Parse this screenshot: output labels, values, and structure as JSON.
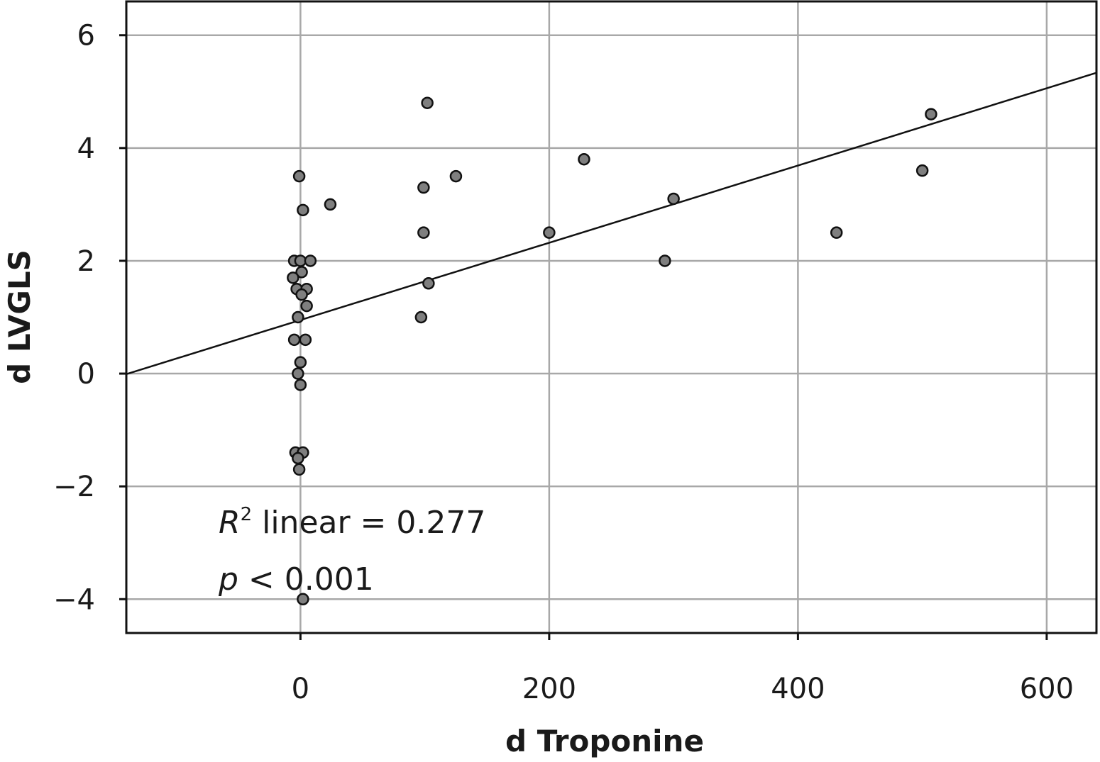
{
  "chart_data": {
    "type": "scatter",
    "title": "",
    "xlabel": "d Troponine",
    "ylabel": "d LVGLS",
    "xlim": [
      -140,
      640
    ],
    "ylim": [
      -4.6,
      6.6
    ],
    "xticks": [
      0,
      200,
      400,
      600
    ],
    "yticks": [
      -4,
      -2,
      0,
      2,
      4,
      6
    ],
    "xtick_labels": [
      "0",
      "200",
      "400",
      "600"
    ],
    "ytick_labels": [
      "−4",
      "−2",
      "0",
      "2",
      "4",
      "6"
    ],
    "grid": true,
    "points": [
      {
        "x": -1,
        "y": 3.5
      },
      {
        "x": 2,
        "y": 2.9
      },
      {
        "x": 24,
        "y": 3.0
      },
      {
        "x": -5,
        "y": 2.0
      },
      {
        "x": 0,
        "y": 2.0
      },
      {
        "x": 8,
        "y": 2.0
      },
      {
        "x": 1,
        "y": 1.8
      },
      {
        "x": -6,
        "y": 1.7
      },
      {
        "x": -3,
        "y": 1.5
      },
      {
        "x": 5,
        "y": 1.5
      },
      {
        "x": 1,
        "y": 1.4
      },
      {
        "x": 5,
        "y": 1.2
      },
      {
        "x": -2,
        "y": 1.0
      },
      {
        "x": -5,
        "y": 0.6
      },
      {
        "x": 4,
        "y": 0.6
      },
      {
        "x": 0,
        "y": 0.2
      },
      {
        "x": -2,
        "y": 0.0
      },
      {
        "x": 0,
        "y": -0.2
      },
      {
        "x": -4,
        "y": -1.4
      },
      {
        "x": 2,
        "y": -1.4
      },
      {
        "x": -2,
        "y": -1.5
      },
      {
        "x": -1,
        "y": -1.7
      },
      {
        "x": 2,
        "y": -4.0
      },
      {
        "x": 102,
        "y": 4.8
      },
      {
        "x": 99,
        "y": 3.3
      },
      {
        "x": 125,
        "y": 3.5
      },
      {
        "x": 99,
        "y": 2.5
      },
      {
        "x": 103,
        "y": 1.6
      },
      {
        "x": 97,
        "y": 1.0
      },
      {
        "x": 200,
        "y": 2.5
      },
      {
        "x": 228,
        "y": 3.8
      },
      {
        "x": 300,
        "y": 3.1
      },
      {
        "x": 293,
        "y": 2.0
      },
      {
        "x": 431,
        "y": 2.5
      },
      {
        "x": 500,
        "y": 3.6
      },
      {
        "x": 507,
        "y": 4.6
      }
    ],
    "fit_line": {
      "intercept": 0.95,
      "slope": 0.00685
    },
    "annotations": {
      "r2_symbol": "R",
      "r2_superscript": "2",
      "r2_text": " linear = 0.277",
      "p_symbol": "p",
      "p_text": " < 0.001"
    }
  }
}
